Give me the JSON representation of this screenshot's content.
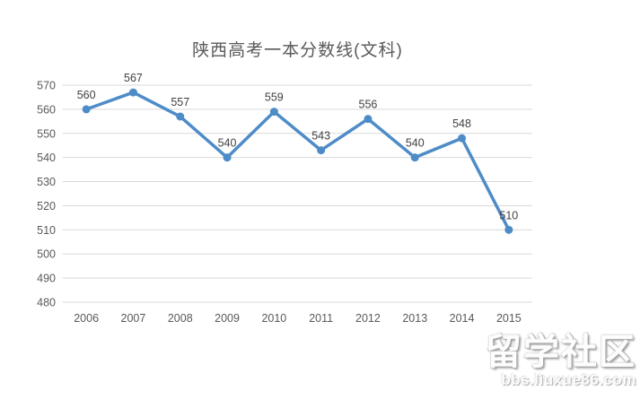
{
  "window": {
    "background": "#ffffff"
  },
  "chart_data": {
    "type": "line",
    "title": "陕西高考一本分数线(文科)",
    "categories": [
      "2006",
      "2007",
      "2008",
      "2009",
      "2010",
      "2011",
      "2012",
      "2013",
      "2014",
      "2015"
    ],
    "values": [
      560,
      567,
      557,
      540,
      559,
      543,
      556,
      540,
      548,
      510
    ],
    "xlabel": "",
    "ylabel": "",
    "ylim": [
      480,
      570
    ],
    "ytick_step": 10,
    "grid": true,
    "legend": false,
    "data_labels_shown": true,
    "colors": {
      "line": "#4E8CC8",
      "marker": "#4E8CC8",
      "grid": "#D9D9D9",
      "tick_text": "#595959",
      "data_label_text": "#404040",
      "title_text": "#595959"
    }
  },
  "watermark": {
    "site_name": "留学社区",
    "site_url": "bbs.liuxue86.com"
  }
}
